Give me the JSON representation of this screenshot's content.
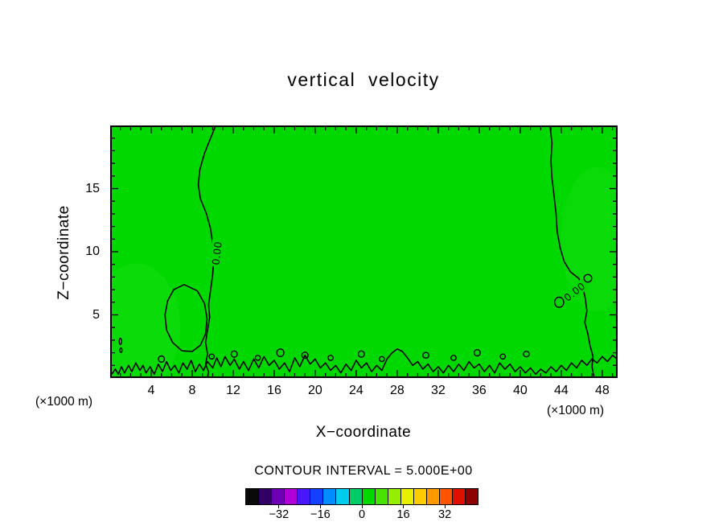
{
  "title": "vertical  velocity",
  "axes": {
    "x": {
      "label": "X−coordinate",
      "unit": "(×1000 m)",
      "min": 0,
      "max": 49.5,
      "major_ticks": [
        4,
        8,
        12,
        16,
        20,
        24,
        28,
        32,
        36,
        40,
        44,
        48
      ],
      "minor_step": 1
    },
    "z": {
      "label": "Z−coordinate",
      "unit": "(×1000 m)",
      "min": 0,
      "max": 20,
      "major_ticks": [
        5,
        10,
        15
      ],
      "minor_step": 1
    }
  },
  "contour": {
    "interval_label": "CONTOUR INTERVAL = 5.000E+00",
    "interval": 5.0,
    "level_label": "0.00",
    "fill_color": "#00d800",
    "line_color": "#000000",
    "labels": [
      {
        "x": 10.35,
        "z": 9.9,
        "rot": -83
      },
      {
        "x": 45.3,
        "z": 6.8,
        "rot": -38
      }
    ]
  },
  "colorbar": {
    "min": -45,
    "max": 45,
    "cell_interval": 5,
    "tick_values": [
      -32,
      -16,
      0,
      16,
      32
    ],
    "tick_labels": [
      "−32",
      "−16",
      "0",
      "16",
      "32"
    ],
    "colors": [
      "#0a0a0a",
      "#320064",
      "#6e00b4",
      "#b000d8",
      "#4816ff",
      "#1440ff",
      "#008cff",
      "#00ccee",
      "#00cc66",
      "#00d800",
      "#46e400",
      "#96ee00",
      "#e6f000",
      "#ffcc00",
      "#ff9900",
      "#ff5500",
      "#e01000",
      "#8c0000"
    ]
  },
  "chart_data": {
    "type": "heatmap",
    "subtype": "filled-contour",
    "title": "vertical  velocity",
    "xlabel": "X−coordinate",
    "ylabel": "Z−coordinate",
    "x_unit": "×1000 m",
    "z_unit": "×1000 m",
    "x_range": [
      0,
      49.5
    ],
    "z_range": [
      0,
      20
    ],
    "contour_interval": 5.0,
    "field_note": "vertical velocity field lies almost entirely inside the 0±2.5 band (uniform green fill); only the 0.00 contour is visible",
    "zero_contours": {
      "lines": [
        [
          [
            10.3,
            20
          ],
          [
            9.8,
            19.0
          ],
          [
            9.2,
            17.8
          ],
          [
            8.75,
            16.5
          ],
          [
            8.6,
            15.3
          ],
          [
            8.8,
            14.2
          ],
          [
            9.4,
            13.0
          ],
          [
            9.8,
            11.8
          ],
          [
            10.0,
            10.6
          ],
          [
            10.1,
            9.4
          ],
          [
            10.0,
            8.2
          ],
          [
            9.8,
            7.0
          ],
          [
            9.6,
            5.8
          ],
          [
            9.7,
            4.8
          ],
          [
            9.5,
            3.8
          ],
          [
            9.3,
            2.8
          ],
          [
            9.5,
            1.9
          ],
          [
            9.3,
            1.1
          ],
          [
            9.6,
            0.5
          ],
          [
            9.5,
            0.05
          ]
        ],
        [
          [
            7.2,
            7.4
          ],
          [
            6.2,
            7.0
          ],
          [
            5.6,
            6.1
          ],
          [
            5.35,
            5.0
          ],
          [
            5.5,
            3.8
          ],
          [
            6.1,
            2.8
          ],
          [
            7.0,
            2.15
          ],
          [
            8.0,
            2.1
          ],
          [
            8.8,
            2.6
          ],
          [
            9.3,
            3.5
          ],
          [
            9.45,
            4.7
          ],
          [
            9.2,
            5.9
          ],
          [
            8.5,
            6.9
          ],
          [
            7.2,
            7.4
          ]
        ],
        [
          [
            42.9,
            20
          ],
          [
            43.1,
            18.6
          ],
          [
            43.0,
            17.2
          ],
          [
            43.1,
            15.8
          ],
          [
            43.3,
            14.4
          ],
          [
            43.5,
            13.0
          ],
          [
            43.6,
            11.6
          ],
          [
            43.9,
            10.3
          ],
          [
            44.3,
            9.2
          ],
          [
            44.9,
            8.4
          ],
          [
            45.7,
            7.9
          ],
          [
            46.1,
            7.2
          ],
          [
            46.35,
            6.3
          ],
          [
            46.5,
            5.3
          ],
          [
            46.3,
            4.4
          ],
          [
            46.6,
            3.5
          ],
          [
            46.8,
            2.6
          ],
          [
            47.1,
            1.7
          ],
          [
            47.0,
            0.9
          ],
          [
            47.2,
            0.05
          ]
        ],
        [
          [
            0.15,
            0.3
          ],
          [
            0.5,
            0.7
          ],
          [
            0.8,
            0.3
          ],
          [
            1.1,
            0.9
          ],
          [
            1.4,
            0.4
          ],
          [
            1.8,
            1.0
          ],
          [
            2.1,
            0.5
          ],
          [
            2.5,
            1.2
          ],
          [
            2.9,
            0.6
          ],
          [
            3.2,
            1.0
          ],
          [
            3.5,
            0.4
          ],
          [
            3.9,
            0.9
          ],
          [
            4.3,
            0.3
          ],
          [
            4.7,
            1.1
          ],
          [
            5.1,
            0.5
          ],
          [
            5.5,
            1.3
          ],
          [
            5.9,
            0.6
          ],
          [
            6.3,
            1.0
          ],
          [
            6.7,
            0.4
          ],
          [
            7.1,
            1.2
          ],
          [
            7.5,
            0.7
          ],
          [
            7.9,
            1.4
          ],
          [
            8.3,
            0.5
          ],
          [
            8.7,
            1.1
          ],
          [
            9.1,
            0.6
          ],
          [
            9.5,
            1.3
          ],
          [
            10.0,
            0.8
          ],
          [
            10.4,
            1.6
          ],
          [
            10.8,
            0.9
          ],
          [
            11.2,
            1.7
          ],
          [
            11.7,
            1.0
          ],
          [
            12.1,
            1.5
          ],
          [
            12.6,
            0.7
          ],
          [
            13.0,
            1.3
          ],
          [
            13.5,
            0.6
          ],
          [
            14.0,
            1.5
          ],
          [
            14.5,
            0.8
          ],
          [
            15.0,
            1.7
          ],
          [
            15.5,
            1.0
          ],
          [
            16.0,
            1.4
          ],
          [
            16.5,
            0.7
          ],
          [
            17.0,
            1.2
          ],
          [
            17.5,
            0.5
          ],
          [
            18.0,
            1.6
          ],
          [
            18.5,
            0.9
          ],
          [
            19.0,
            1.8
          ],
          [
            19.5,
            1.1
          ],
          [
            20.0,
            1.5
          ],
          [
            20.5,
            0.8
          ],
          [
            21.0,
            1.2
          ],
          [
            21.5,
            0.6
          ],
          [
            22.0,
            1.0
          ],
          [
            22.5,
            0.4
          ],
          [
            23.0,
            1.1
          ],
          [
            23.5,
            0.6
          ],
          [
            24.0,
            1.4
          ],
          [
            24.5,
            0.8
          ],
          [
            25.0,
            1.2
          ],
          [
            25.5,
            0.5
          ],
          [
            26.0,
            1.0
          ],
          [
            26.5,
            0.6
          ],
          [
            27.0,
            1.5
          ],
          [
            27.5,
            2.0
          ],
          [
            28.0,
            2.3
          ],
          [
            28.5,
            2.1
          ],
          [
            29.0,
            1.6
          ],
          [
            29.5,
            1.0
          ],
          [
            30.0,
            1.3
          ],
          [
            30.5,
            0.7
          ],
          [
            31.0,
            1.1
          ],
          [
            31.5,
            0.5
          ],
          [
            32.0,
            0.9
          ],
          [
            32.5,
            0.4
          ],
          [
            33.0,
            1.0
          ],
          [
            33.5,
            0.5
          ],
          [
            34.0,
            1.1
          ],
          [
            34.5,
            0.6
          ],
          [
            35.0,
            1.3
          ],
          [
            35.5,
            0.8
          ],
          [
            36.0,
            1.1
          ],
          [
            36.5,
            0.5
          ],
          [
            37.0,
            1.0
          ],
          [
            37.5,
            0.4
          ],
          [
            38.0,
            1.2
          ],
          [
            38.5,
            0.7
          ],
          [
            39.0,
            1.1
          ],
          [
            39.5,
            0.5
          ],
          [
            40.0,
            0.9
          ],
          [
            40.5,
            0.4
          ],
          [
            41.0,
            0.8
          ],
          [
            41.5,
            0.3
          ],
          [
            42.0,
            0.7
          ],
          [
            42.5,
            0.4
          ],
          [
            43.0,
            0.9
          ],
          [
            43.5,
            0.5
          ],
          [
            44.0,
            1.0
          ],
          [
            44.5,
            0.6
          ],
          [
            45.0,
            1.2
          ],
          [
            45.5,
            0.8
          ],
          [
            46.0,
            1.4
          ],
          [
            46.5,
            1.0
          ],
          [
            47.0,
            1.5
          ],
          [
            47.5,
            1.2
          ],
          [
            48.0,
            1.7
          ],
          [
            48.5,
            1.3
          ],
          [
            49.0,
            1.8
          ],
          [
            49.45,
            1.5
          ]
        ]
      ],
      "islands": [
        [
          1.0,
          2.9,
          0.12,
          0.25
        ],
        [
          1.05,
          2.2,
          0.1,
          0.18
        ],
        [
          5.0,
          1.5,
          0.3,
          0.25
        ],
        [
          9.9,
          1.7,
          0.25,
          0.2
        ],
        [
          12.1,
          1.9,
          0.3,
          0.25
        ],
        [
          14.4,
          1.6,
          0.25,
          0.2
        ],
        [
          16.6,
          2.0,
          0.35,
          0.3
        ],
        [
          19.0,
          1.8,
          0.3,
          0.25
        ],
        [
          21.5,
          1.6,
          0.25,
          0.2
        ],
        [
          24.5,
          1.9,
          0.3,
          0.25
        ],
        [
          26.5,
          1.5,
          0.25,
          0.2
        ],
        [
          30.8,
          1.8,
          0.3,
          0.22
        ],
        [
          33.5,
          1.6,
          0.25,
          0.2
        ],
        [
          35.8,
          2.0,
          0.3,
          0.25
        ],
        [
          38.3,
          1.7,
          0.25,
          0.2
        ],
        [
          40.6,
          1.9,
          0.28,
          0.22
        ],
        [
          43.8,
          6.0,
          0.45,
          0.4
        ],
        [
          46.6,
          7.9,
          0.38,
          0.3
        ]
      ]
    }
  }
}
